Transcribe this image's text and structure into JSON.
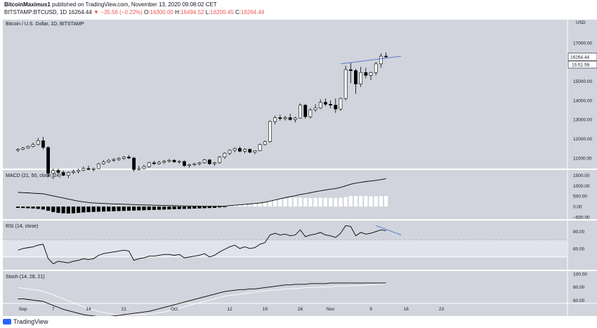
{
  "header": {
    "author": "BitcoinMaximus1",
    "published_text": "published on TradingView.com, November 13, 2020 09:08:02 CET",
    "symbol": "BITSTAMP:BTCUSD, 1D",
    "last": "16264.44",
    "change_arrow": "▼",
    "change": "−35.56 (−0.22%)",
    "o_label": "O:",
    "o_value": "16300.00",
    "h_label": "H:",
    "h_value": "16494.52",
    "l_label": "L:",
    "l_value": "16200.45",
    "c_label": "C:",
    "c_value": "16264.44"
  },
  "footer": {
    "brand": "TradingView"
  },
  "colors": {
    "plot_bg": "#d1d4dc",
    "border": "#ffffff",
    "candle_up": "#ffffff",
    "candle_down": "#000000",
    "line": "#000000",
    "trend": "#5b7ec9",
    "rsi_band": "#e0e3eb"
  },
  "chart_data": {
    "type": "candlestick",
    "title": "Bitcoin / U.S. Dollar, 1D, BITSTAMP",
    "currency": "USD",
    "last_price_label": "16264.44",
    "countdown_label": "15:51:59",
    "price_ticks": [
      11000,
      12000,
      13000,
      14000,
      15000,
      16000,
      17000
    ],
    "price_tick_labels": [
      "11000.00",
      "12000.00",
      "13000.00",
      "14000.00",
      "15000.00",
      "16000.00",
      "17000.00"
    ],
    "price_range": [
      10450,
      18200
    ],
    "x_range": [
      -3,
      109
    ],
    "x_ticks": [
      {
        "label": "Sep",
        "i": 1
      },
      {
        "label": "7",
        "i": 7
      },
      {
        "label": "14",
        "i": 14
      },
      {
        "label": "21",
        "i": 21
      },
      {
        "label": "Oct",
        "i": 31
      },
      {
        "label": "12",
        "i": 42
      },
      {
        "label": "19",
        "i": 49
      },
      {
        "label": "26",
        "i": 56
      },
      {
        "label": "Nov",
        "i": 62
      },
      {
        "label": "9",
        "i": 70
      },
      {
        "label": "16",
        "i": 77
      },
      {
        "label": "23",
        "i": 84
      }
    ],
    "trend_line": {
      "from": [
        64,
        15900
      ],
      "to": [
        76,
        16300
      ]
    },
    "candles": [
      [
        11400,
        11500,
        11320,
        11450
      ],
      [
        11450,
        11570,
        11400,
        11520
      ],
      [
        11520,
        11650,
        11480,
        11600
      ],
      [
        11600,
        11800,
        11550,
        11700
      ],
      [
        11700,
        12050,
        11650,
        11900
      ],
      [
        11900,
        12100,
        11450,
        11550
      ],
      [
        11550,
        11600,
        10000,
        10200
      ],
      [
        10200,
        10450,
        9900,
        10350
      ],
      [
        10350,
        10450,
        10150,
        10250
      ],
      [
        10250,
        10350,
        10050,
        10100
      ],
      [
        10100,
        10300,
        9950,
        10250
      ],
      [
        10250,
        10400,
        10150,
        10300
      ],
      [
        10300,
        10450,
        10200,
        10350
      ],
      [
        10350,
        10550,
        10300,
        10450
      ],
      [
        10450,
        10600,
        10380,
        10400
      ],
      [
        10400,
        10500,
        10300,
        10440
      ],
      [
        10440,
        10750,
        10420,
        10700
      ],
      [
        10700,
        10900,
        10650,
        10800
      ],
      [
        10800,
        10950,
        10750,
        10880
      ],
      [
        10880,
        11000,
        10800,
        10920
      ],
      [
        10920,
        11050,
        10850,
        10980
      ],
      [
        10980,
        11100,
        10900,
        11050
      ],
      [
        11050,
        11150,
        10950,
        11000
      ],
      [
        11000,
        11050,
        10300,
        10400
      ],
      [
        10400,
        10600,
        10350,
        10450
      ],
      [
        10450,
        10650,
        10400,
        10550
      ],
      [
        10550,
        10800,
        10500,
        10750
      ],
      [
        10750,
        10850,
        10650,
        10700
      ],
      [
        10700,
        10850,
        10650,
        10780
      ],
      [
        10780,
        10900,
        10700,
        10830
      ],
      [
        10830,
        10950,
        10750,
        10880
      ],
      [
        10880,
        10950,
        10750,
        10800
      ],
      [
        10800,
        10900,
        10700,
        10820
      ],
      [
        10820,
        10870,
        10550,
        10600
      ],
      [
        10600,
        10700,
        10500,
        10650
      ],
      [
        10650,
        10750,
        10580,
        10700
      ],
      [
        10700,
        10800,
        10620,
        10750
      ],
      [
        10750,
        10950,
        10700,
        10900
      ],
      [
        10900,
        10950,
        10650,
        10700
      ],
      [
        10700,
        10800,
        10600,
        10750
      ],
      [
        10750,
        11100,
        10700,
        11050
      ],
      [
        11050,
        11300,
        10950,
        11250
      ],
      [
        11250,
        11450,
        11150,
        11400
      ],
      [
        11400,
        11550,
        11300,
        11500
      ],
      [
        11500,
        11600,
        11300,
        11350
      ],
      [
        11350,
        11500,
        11250,
        11450
      ],
      [
        11450,
        11500,
        11250,
        11300
      ],
      [
        11300,
        11400,
        11200,
        11380
      ],
      [
        11380,
        11750,
        11350,
        11700
      ],
      [
        11700,
        11900,
        11650,
        11850
      ],
      [
        11850,
        12950,
        11800,
        12900
      ],
      [
        12900,
        13200,
        12750,
        13100
      ],
      [
        13100,
        13250,
        12950,
        13050
      ],
      [
        13050,
        13200,
        12950,
        13100
      ],
      [
        13100,
        13300,
        12950,
        13000
      ],
      [
        13000,
        13150,
        12850,
        13080
      ],
      [
        13080,
        13850,
        13050,
        13750
      ],
      [
        13750,
        13800,
        13050,
        13150
      ],
      [
        13150,
        13600,
        13050,
        13500
      ],
      [
        13500,
        13800,
        13400,
        13600
      ],
      [
        13600,
        14050,
        13550,
        13900
      ],
      [
        13900,
        14100,
        13700,
        13800
      ],
      [
        13800,
        14000,
        13600,
        13750
      ],
      [
        13750,
        14100,
        13350,
        13550
      ],
      [
        13550,
        14150,
        13450,
        14100
      ],
      [
        14100,
        15800,
        14000,
        15600
      ],
      [
        15600,
        15950,
        14900,
        15550
      ],
      [
        15550,
        15650,
        14350,
        14850
      ],
      [
        14850,
        15750,
        14700,
        15450
      ],
      [
        15450,
        15700,
        15150,
        15300
      ],
      [
        15300,
        15500,
        15050,
        15450
      ],
      [
        15450,
        16000,
        15300,
        15900
      ],
      [
        15900,
        16450,
        15700,
        16300
      ],
      [
        16300,
        16494.52,
        16200.45,
        16264.44
      ]
    ],
    "macd": {
      "title": "MACD (21, 50, close, 24)",
      "range": [
        -600,
        1750
      ],
      "ticks": [
        1500,
        1000,
        500,
        0,
        -500
      ],
      "tick_labels": [
        "1500.00",
        "1000.00",
        "500.00",
        "0.00",
        "−500.00"
      ],
      "line": [
        680,
        665,
        655,
        640,
        625,
        610,
        560,
        510,
        460,
        410,
        360,
        310,
        260,
        225,
        195,
        175,
        160,
        148,
        138,
        128,
        118,
        110,
        102,
        94,
        85,
        78,
        72,
        66,
        60,
        54,
        48,
        42,
        36,
        30,
        26,
        22,
        18,
        16,
        14,
        14,
        18,
        28,
        44,
        64,
        86,
        106,
        126,
        148,
        172,
        210,
        262,
        318,
        372,
        424,
        476,
        520,
        576,
        616,
        662,
        710,
        754,
        794,
        832,
        862,
        918,
        992,
        1068,
        1122,
        1158,
        1196,
        1224,
        1252,
        1290,
        1332
      ],
      "hist": [
        -60,
        -70,
        -80,
        -90,
        -110,
        -140,
        -200,
        -260,
        -300,
        -320,
        -330,
        -320,
        -300,
        -280,
        -265,
        -255,
        -245,
        -238,
        -230,
        -222,
        -214,
        -206,
        -198,
        -190,
        -182,
        -174,
        -166,
        -158,
        -150,
        -142,
        -134,
        -126,
        -118,
        -110,
        -102,
        -94,
        -86,
        -78,
        -70,
        -62,
        -40,
        -10,
        25,
        60,
        95,
        125,
        150,
        175,
        200,
        240,
        285,
        330,
        370,
        400,
        420,
        420,
        430,
        420,
        410,
        415,
        420,
        420,
        415,
        400,
        420,
        460,
        500,
        510,
        500,
        500,
        490,
        490,
        500,
        510
      ]
    },
    "rsi": {
      "title": "RSI (14, close)",
      "range": [
        35,
        93
      ],
      "ticks": [
        80,
        60
      ],
      "tick_labels": [
        "80.00",
        "60.00"
      ],
      "band": [
        50,
        70
      ],
      "trend_line": {
        "from": [
          71,
          87
        ],
        "to": [
          76,
          76
        ]
      },
      "values": [
        58,
        60,
        61,
        62,
        64,
        65,
        48,
        42,
        45,
        44,
        43,
        45,
        46,
        48,
        47,
        48,
        52,
        54,
        55,
        56,
        57,
        58,
        57,
        46,
        48,
        49,
        51,
        51,
        52,
        53,
        53,
        52,
        53,
        49,
        50,
        51,
        52,
        54,
        50,
        52,
        56,
        59,
        62,
        64,
        60,
        62,
        60,
        61,
        65,
        67,
        76,
        78,
        76,
        77,
        75,
        76,
        82,
        74,
        76,
        77,
        79,
        76,
        75,
        73,
        78,
        87,
        86,
        75,
        79,
        77,
        78,
        80,
        82,
        81
      ]
    },
    "stoch": {
      "title": "Stoch (14, 28, 21)",
      "range": [
        55,
        104
      ],
      "ticks": [
        100,
        80,
        60
      ],
      "tick_labels": [
        "100.00",
        "80.00",
        "60.00"
      ],
      "k": [
        62,
        62,
        61,
        60,
        59,
        58,
        55,
        52,
        49,
        46,
        44,
        42,
        40,
        38,
        37,
        36,
        35,
        35,
        35,
        36,
        37,
        38,
        39,
        40,
        41,
        42,
        43,
        45,
        47,
        49,
        51,
        53,
        55,
        57,
        59,
        61,
        63,
        65,
        67,
        69,
        71,
        73,
        74,
        75,
        76,
        76,
        77,
        77,
        78,
        79,
        80,
        81,
        82,
        83,
        83,
        84,
        84,
        84,
        85,
        85,
        85,
        85,
        86,
        86,
        86,
        86,
        86,
        86,
        86,
        86,
        86,
        86,
        86,
        86
      ],
      "d": [
        79,
        78,
        77,
        76,
        75,
        73,
        71,
        68,
        65,
        62,
        59,
        56,
        53,
        50,
        47,
        45,
        43,
        41,
        40,
        39,
        38,
        38,
        38,
        38,
        38,
        38,
        39,
        40,
        41,
        42,
        44,
        46,
        48,
        50,
        52,
        54,
        56,
        58,
        60,
        62,
        64,
        66,
        67,
        68,
        69,
        70,
        71,
        72,
        73,
        74,
        75,
        75,
        76,
        77,
        77,
        78,
        78,
        79,
        79,
        79,
        80,
        80,
        80,
        81,
        81,
        81,
        82,
        82,
        82,
        83,
        83,
        84,
        84,
        85
      ]
    }
  }
}
